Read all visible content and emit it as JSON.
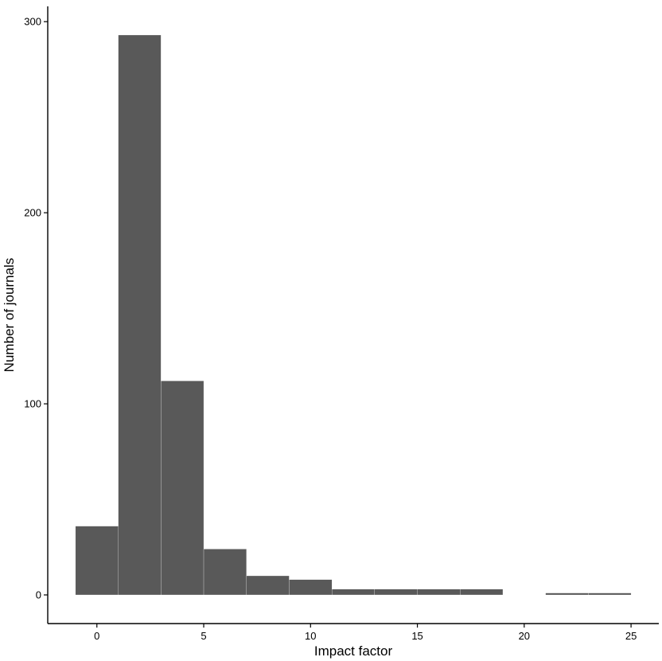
{
  "chart_data": {
    "type": "bar",
    "title": "",
    "xlabel": "Impact factor",
    "ylabel": "Number of journals",
    "bin_width": 2,
    "bins": [
      {
        "x0": -1,
        "x1": 1,
        "count": 36
      },
      {
        "x0": 1,
        "x1": 3,
        "count": 293
      },
      {
        "x0": 3,
        "x1": 5,
        "count": 112
      },
      {
        "x0": 5,
        "x1": 7,
        "count": 24
      },
      {
        "x0": 7,
        "x1": 9,
        "count": 10
      },
      {
        "x0": 9,
        "x1": 11,
        "count": 8
      },
      {
        "x0": 11,
        "x1": 13,
        "count": 3
      },
      {
        "x0": 13,
        "x1": 15,
        "count": 3
      },
      {
        "x0": 15,
        "x1": 17,
        "count": 3
      },
      {
        "x0": 17,
        "x1": 19,
        "count": 3
      },
      {
        "x0": 19,
        "x1": 21,
        "count": 0
      },
      {
        "x0": 21,
        "x1": 23,
        "count": 1
      },
      {
        "x0": 23,
        "x1": 25,
        "count": 1
      }
    ],
    "xlim": [
      -2.3,
      26.3
    ],
    "ylim": [
      -15,
      308
    ],
    "x_ticks": [
      0,
      5,
      10,
      15,
      20,
      25
    ],
    "x_tick_labels": [
      "0",
      "5",
      "10",
      "15",
      "20",
      "25"
    ],
    "y_ticks": [
      0,
      100,
      200,
      300
    ],
    "y_tick_labels": [
      "0",
      "100",
      "200",
      "300"
    ],
    "bar_color": "#595959",
    "grid": false,
    "legend": "none"
  }
}
